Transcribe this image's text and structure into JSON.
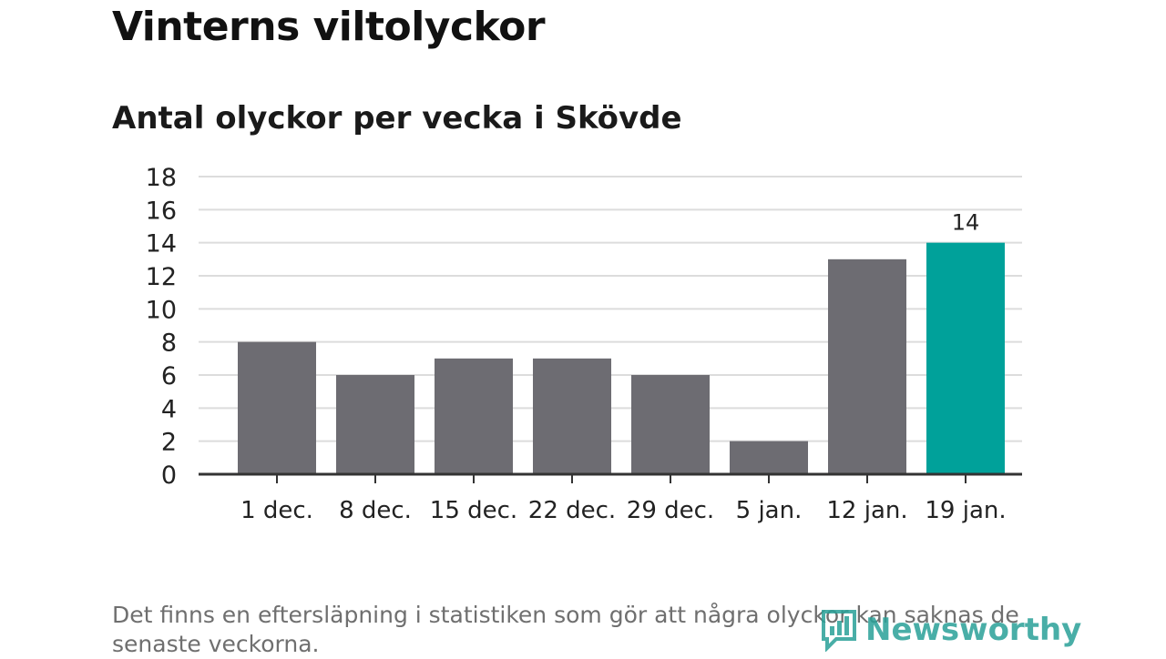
{
  "title": "Vinterns viltolyckor",
  "subtitle": "Antal olyckor per vecka i Skövde",
  "footnote": "Det finns en eftersläpning i statistiken som gör att några olyckor kan saknas de senaste veckorna.",
  "logo": {
    "text": "Newsworthy",
    "icon": "newsworthy-logo-icon"
  },
  "colors": {
    "bar": "#6d6c72",
    "highlight": "#00a19a",
    "grid": "#dcdcdc",
    "axis": "#333333",
    "logo": "#2aa198"
  },
  "chart_data": {
    "type": "bar",
    "title": "Vinterns viltolyckor",
    "subtitle": "Antal olyckor per vecka i Skövde",
    "categories": [
      "1 dec.",
      "8 dec.",
      "15 dec.",
      "22 dec.",
      "29 dec.",
      "5 jan.",
      "12 jan.",
      "19 jan."
    ],
    "values": [
      8,
      6,
      7,
      7,
      6,
      2,
      13,
      14
    ],
    "highlight_index": 7,
    "data_labels": [
      {
        "index": 7,
        "text": "14"
      }
    ],
    "xlabel": "",
    "ylabel": "",
    "ylim": [
      0,
      18
    ],
    "yticks": [
      0,
      2,
      4,
      6,
      8,
      10,
      12,
      14,
      16,
      18
    ],
    "grid": true,
    "legend": "none"
  }
}
